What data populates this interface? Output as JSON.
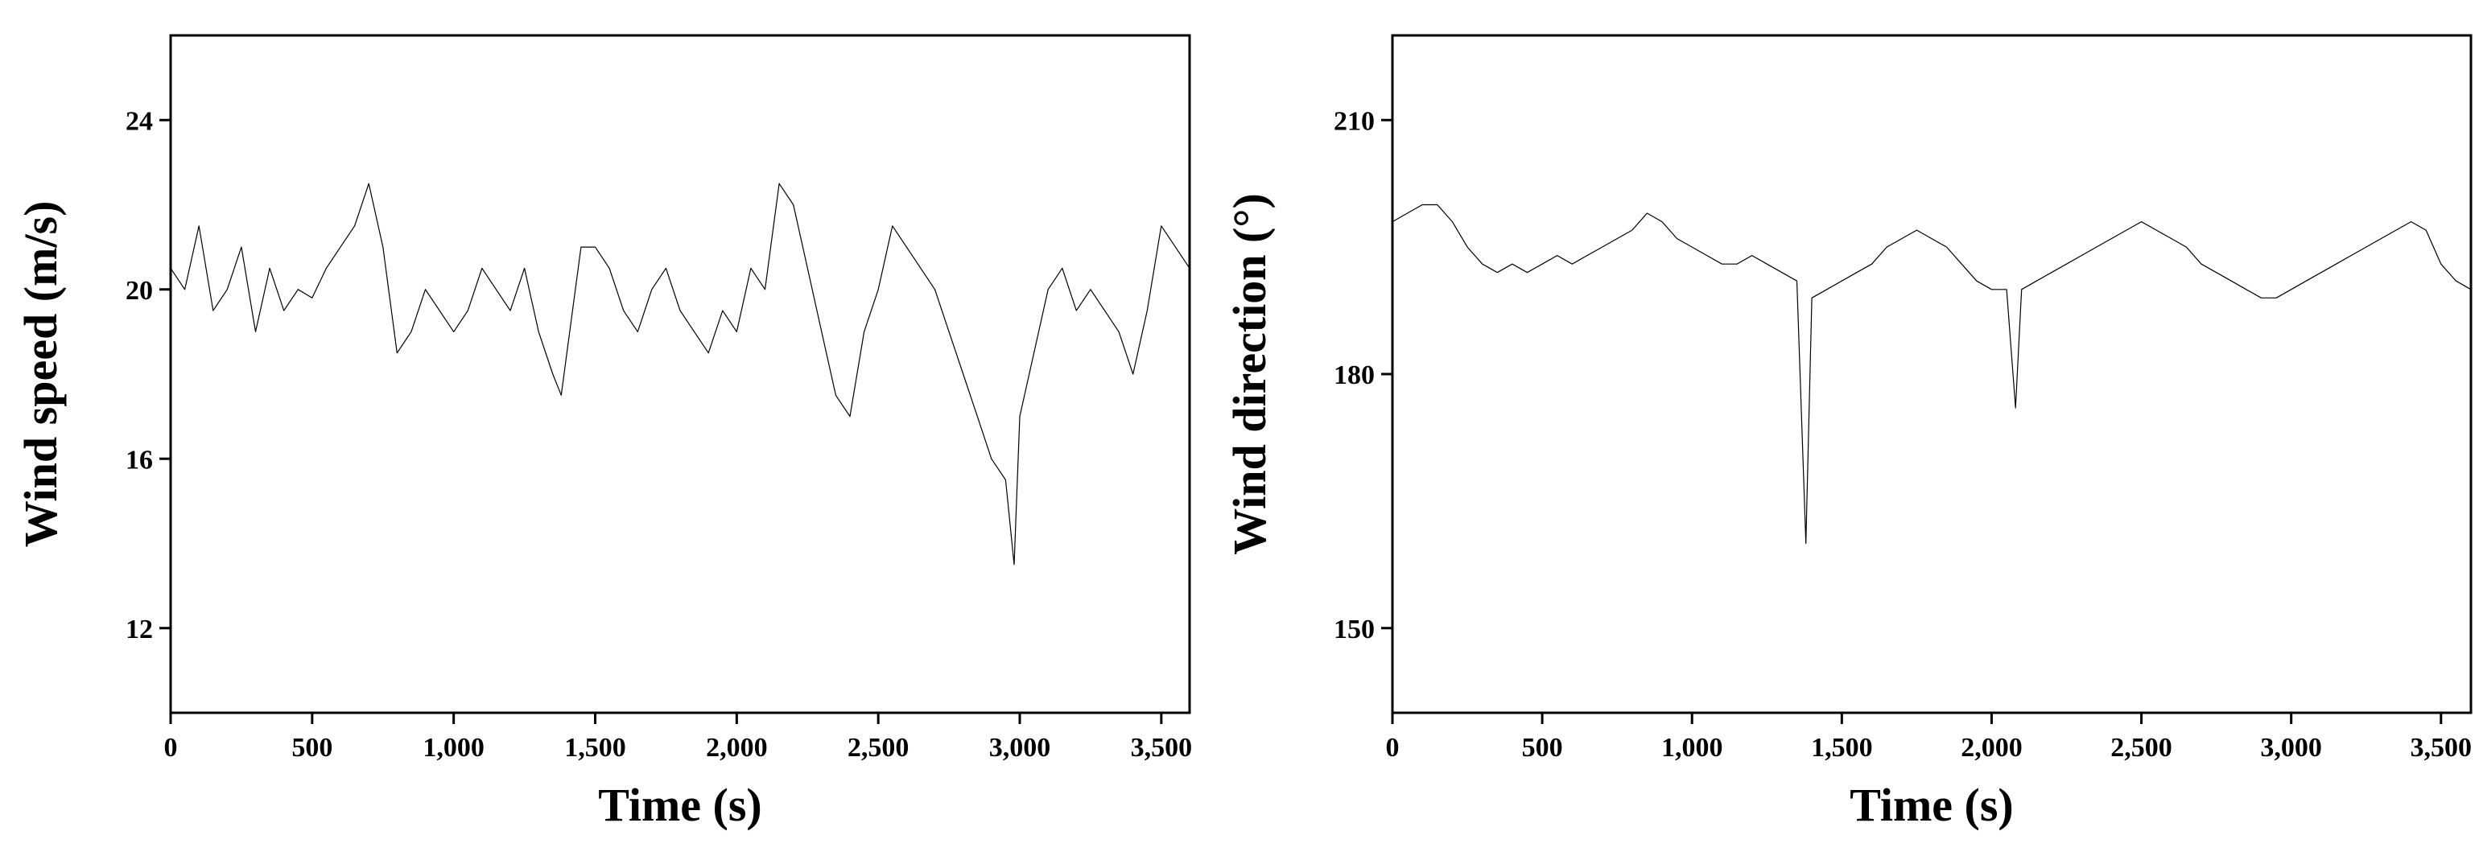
{
  "chart_data": [
    {
      "type": "line",
      "xlabel": "Time (s)",
      "ylabel": "Wind speed (m/s)",
      "xlim": [
        0,
        3600
      ],
      "ylim": [
        10,
        26
      ],
      "xticks": [
        0,
        500,
        1000,
        1500,
        2000,
        2500,
        3000,
        3500
      ],
      "xtick_labels": [
        "0",
        "500",
        "1,000",
        "1,500",
        "2,000",
        "2,500",
        "3,000",
        "3,500"
      ],
      "yticks": [
        12,
        16,
        20,
        24
      ],
      "ytick_labels": [
        "12",
        "16",
        "20",
        "24"
      ],
      "grid": false,
      "line_color": "#000000",
      "series": [
        {
          "x": [
            0,
            50,
            100,
            150,
            200,
            250,
            300,
            350,
            400,
            450,
            500,
            550,
            600,
            650,
            700,
            750,
            800,
            850,
            900,
            950,
            1000,
            1050,
            1100,
            1150,
            1200,
            1250,
            1300,
            1350,
            1380,
            1400,
            1450,
            1500,
            1550,
            1600,
            1650,
            1700,
            1750,
            1800,
            1850,
            1900,
            1950,
            2000,
            2050,
            2100,
            2150,
            2200,
            2250,
            2300,
            2350,
            2400,
            2450,
            2500,
            2550,
            2600,
            2650,
            2700,
            2750,
            2800,
            2850,
            2900,
            2950,
            2980,
            3000,
            3050,
            3100,
            3150,
            3200,
            3250,
            3300,
            3350,
            3400,
            3450,
            3500,
            3550,
            3600
          ],
          "y": [
            20.5,
            20.0,
            21.5,
            19.5,
            20.0,
            21.0,
            19.0,
            20.5,
            19.5,
            20.0,
            19.8,
            20.5,
            21.0,
            21.5,
            22.5,
            21.0,
            18.5,
            19.0,
            20.0,
            19.5,
            19.0,
            19.5,
            20.5,
            20.0,
            19.5,
            20.5,
            19.0,
            18.0,
            17.5,
            18.5,
            21.0,
            21.0,
            20.5,
            19.5,
            19.0,
            20.0,
            20.5,
            19.5,
            19.0,
            18.5,
            19.5,
            19.0,
            20.5,
            20.0,
            22.5,
            22.0,
            20.5,
            19.0,
            17.5,
            17.0,
            19.0,
            20.0,
            21.5,
            21.0,
            20.5,
            20.0,
            19.0,
            18.0,
            17.0,
            16.0,
            15.5,
            13.5,
            17.0,
            18.5,
            20.0,
            20.5,
            19.5,
            20.0,
            19.5,
            19.0,
            18.0,
            19.5,
            21.5,
            21.0,
            20.5
          ]
        }
      ]
    },
    {
      "type": "line",
      "xlabel": "Time (s)",
      "ylabel": "Wind direction (°)",
      "xlim": [
        0,
        3600
      ],
      "ylim": [
        140,
        220
      ],
      "xticks": [
        0,
        500,
        1000,
        1500,
        2000,
        2500,
        3000,
        3500
      ],
      "xtick_labels": [
        "0",
        "500",
        "1,000",
        "1,500",
        "2,000",
        "2,500",
        "3,000",
        "3,500"
      ],
      "yticks": [
        150,
        180,
        210
      ],
      "ytick_labels": [
        "150",
        "180",
        "210"
      ],
      "grid": false,
      "line_color": "#000000",
      "series": [
        {
          "x": [
            0,
            50,
            100,
            150,
            200,
            250,
            300,
            350,
            400,
            450,
            500,
            550,
            600,
            650,
            700,
            750,
            800,
            850,
            900,
            950,
            1000,
            1050,
            1100,
            1150,
            1200,
            1250,
            1300,
            1350,
            1380,
            1400,
            1450,
            1500,
            1550,
            1600,
            1650,
            1700,
            1750,
            1800,
            1850,
            1900,
            1950,
            2000,
            2050,
            2080,
            2100,
            2150,
            2200,
            2250,
            2300,
            2350,
            2400,
            2450,
            2500,
            2550,
            2600,
            2650,
            2700,
            2750,
            2800,
            2850,
            2900,
            2950,
            3000,
            3050,
            3100,
            3150,
            3200,
            3250,
            3300,
            3350,
            3400,
            3450,
            3500,
            3550,
            3600
          ],
          "y": [
            198,
            199,
            200,
            200,
            198,
            195,
            193,
            192,
            193,
            192,
            193,
            194,
            193,
            194,
            195,
            196,
            197,
            199,
            198,
            196,
            195,
            194,
            193,
            193,
            194,
            193,
            192,
            191,
            160,
            189,
            190,
            191,
            192,
            193,
            195,
            196,
            197,
            196,
            195,
            193,
            191,
            190,
            190,
            176,
            190,
            191,
            192,
            193,
            194,
            195,
            196,
            197,
            198,
            197,
            196,
            195,
            193,
            192,
            191,
            190,
            189,
            189,
            190,
            191,
            192,
            193,
            194,
            195,
            196,
            197,
            198,
            197,
            193,
            191,
            190
          ]
        }
      ]
    }
  ]
}
